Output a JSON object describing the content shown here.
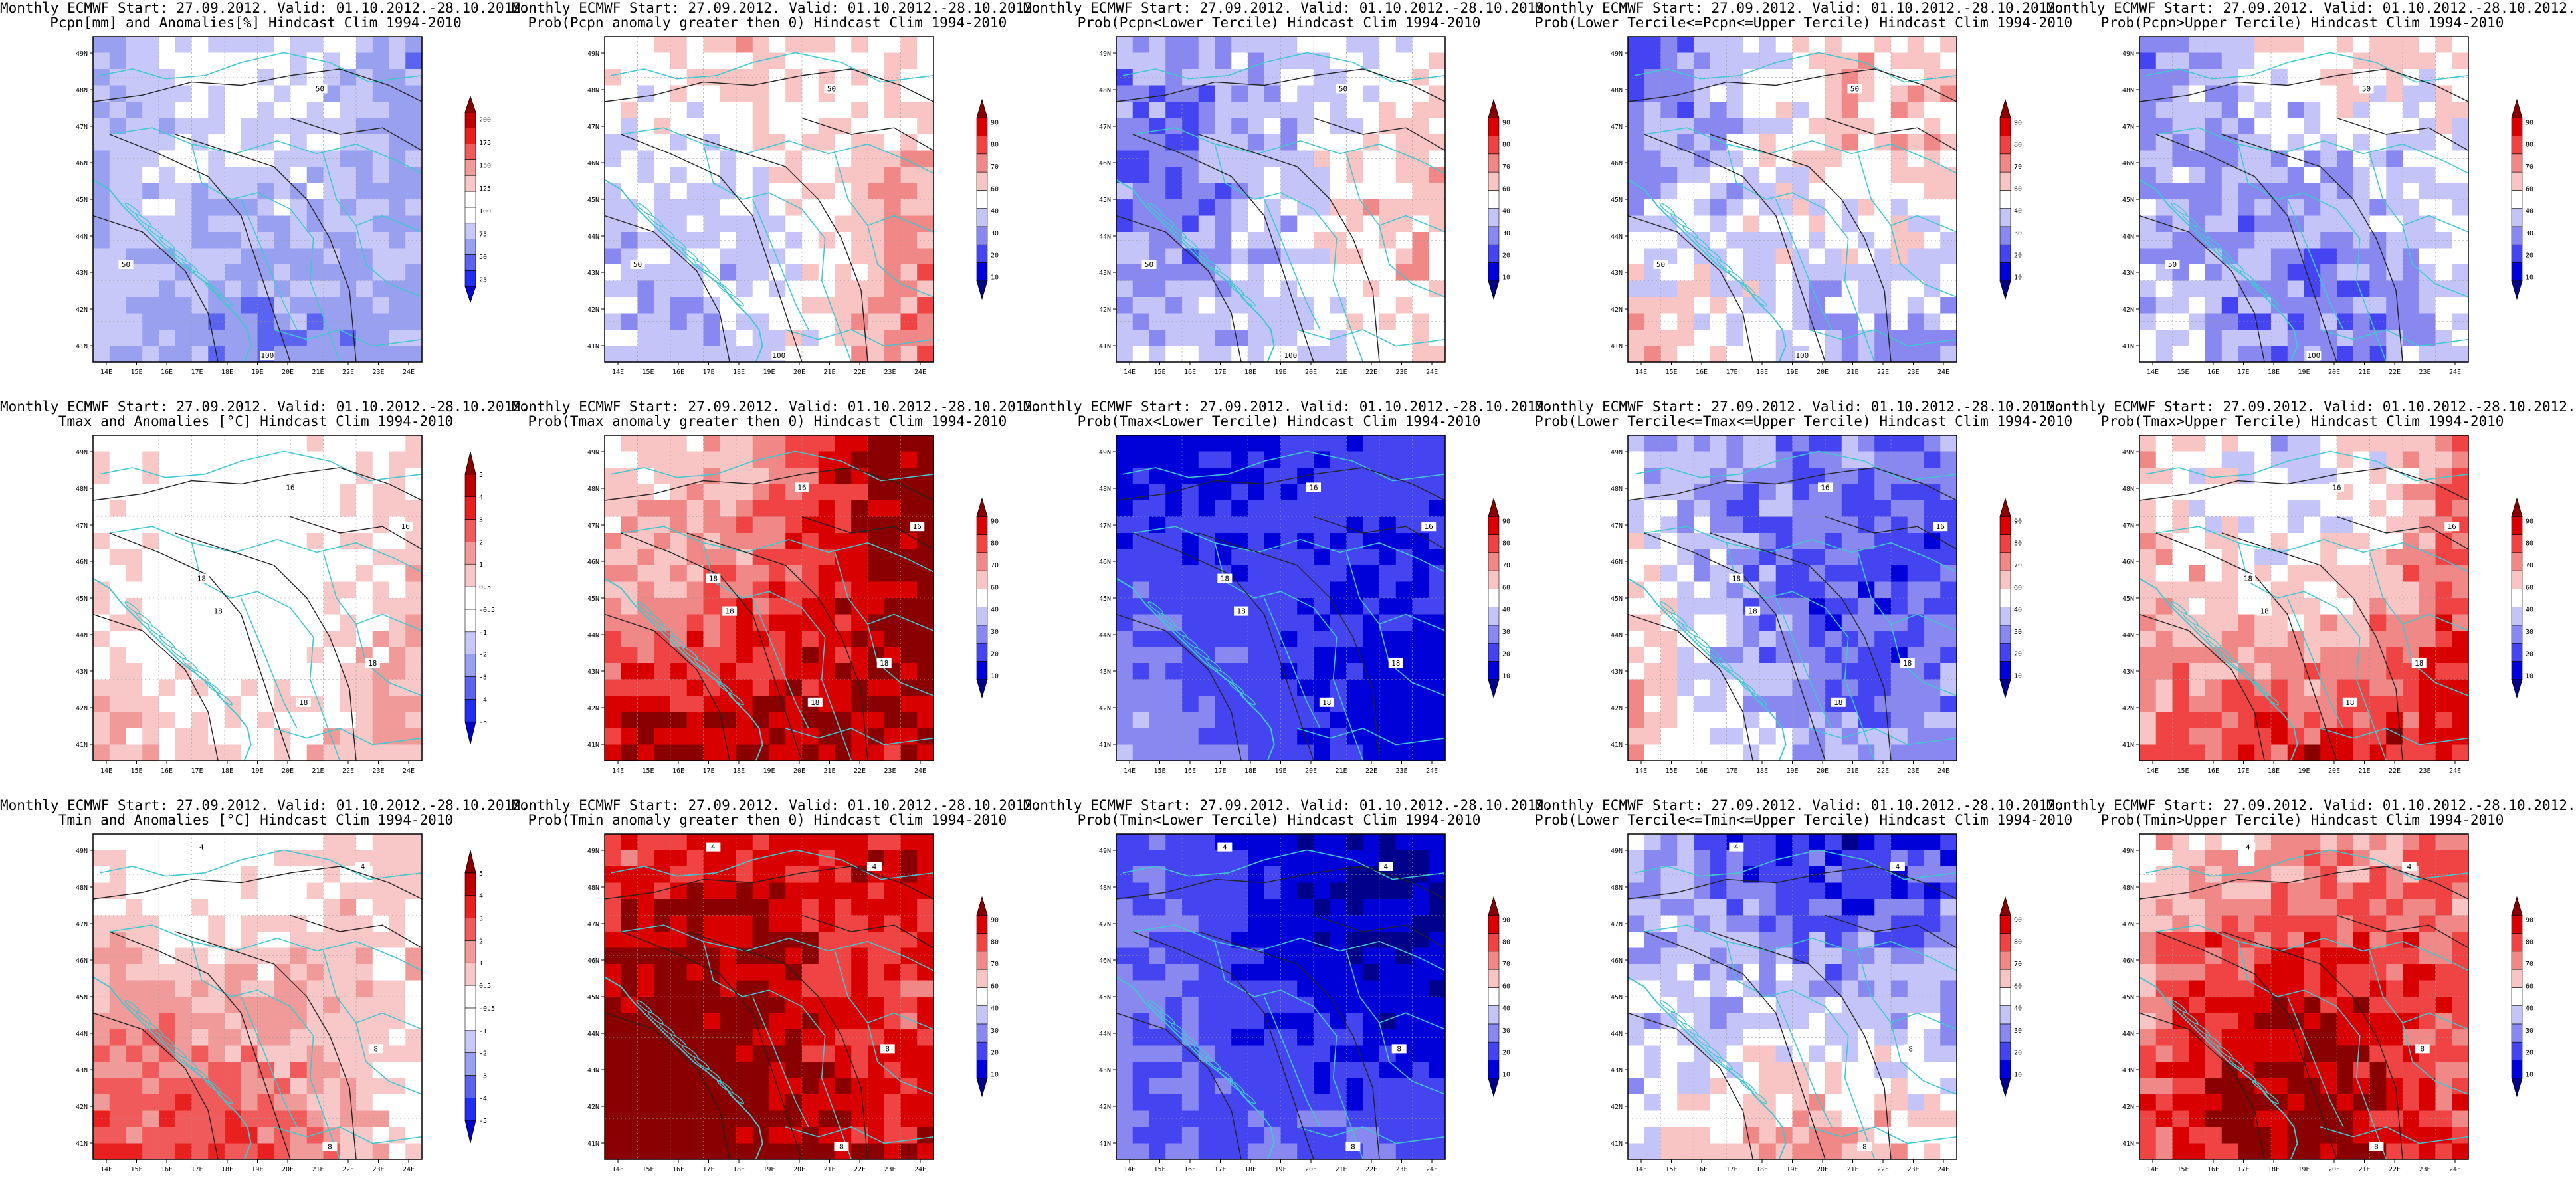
{
  "tick_labels": {
    "lon": [
      "14E",
      "15E",
      "16E",
      "17E",
      "18E",
      "19E",
      "20E",
      "21E",
      "22E",
      "23E",
      "24E"
    ],
    "lat": [
      "41N",
      "42N",
      "43N",
      "44N",
      "45N",
      "46N",
      "47N",
      "48N",
      "49N"
    ]
  },
  "colors": {
    "sea_border": "#40c8d0",
    "contour": "#222222",
    "anomaly_scale": [
      "#0000c8",
      "#2030f0",
      "#5a64f0",
      "#9aa0f0",
      "#c8c8f8",
      "#ffffff",
      "#ffffff",
      "#f8c8c8",
      "#f09a9a",
      "#f05a5a",
      "#e82020",
      "#c00000",
      "#880000"
    ],
    "prob_scale": [
      "#00008a",
      "#0000d8",
      "#4444f0",
      "#8888f0",
      "#c4c4f8",
      "#ffffff",
      "#f8c4c4",
      "#f08888",
      "#f04444",
      "#d80000",
      "#8a0000"
    ]
  },
  "colorbars": {
    "precip": [
      "25",
      "50",
      "75",
      "100",
      "125",
      "150",
      "175",
      "200"
    ],
    "temp": [
      "-5",
      "-4",
      "-3",
      "-2",
      "-1",
      "-0.5",
      "0.5",
      "1",
      "2",
      "3",
      "4",
      "5"
    ],
    "prob": [
      "10",
      "20",
      "30",
      "40",
      "60",
      "70",
      "80",
      "90"
    ]
  },
  "panels": [
    {
      "line1": "Monthly ECMWF Start: 27.09.2012. Valid: 01.10.2012.-28.10.2012.",
      "line2": "Pcpn[mm] and Anomalies[%] Hindcast Clim 1994-2010",
      "scale": "precip",
      "base": 4,
      "variance": 1,
      "labels": [
        [
          "50",
          0.69,
          0.16
        ],
        [
          "50",
          0.1,
          0.7
        ],
        [
          "100",
          0.53,
          0.98
        ]
      ]
    },
    {
      "line1": "Monthly ECMWF Start: 27.09.2012. Valid: 01.10.2012.-28.10.2012.",
      "line2": "Prob(Pcpn anomaly greater then 0) Hindcast Clim 1994-2010",
      "scale": "prob",
      "base": 4.5,
      "variance": 1,
      "labels": [
        [
          "50",
          0.69,
          0.16
        ],
        [
          "50",
          0.1,
          0.7
        ],
        [
          "100",
          0.53,
          0.98
        ]
      ]
    },
    {
      "line1": "Monthly ECMWF Start: 27.09.2012. Valid: 01.10.2012.-28.10.2012.",
      "line2": "Prob(Pcpn<Lower Tercile) Hindcast Clim 1994-2010",
      "scale": "prob",
      "base": 3.5,
      "variance": 1.2,
      "labels": [
        [
          "50",
          0.69,
          0.16
        ],
        [
          "50",
          0.1,
          0.7
        ],
        [
          "100",
          0.53,
          0.98
        ]
      ]
    },
    {
      "line1": "Monthly ECMWF Start: 27.09.2012. Valid: 01.10.2012.-28.10.2012.",
      "line2": "Prob(Lower Tercile<=Pcpn<=Upper Tercile) Hindcast Clim 1994-2010",
      "scale": "prob",
      "base": 3.4,
      "variance": 1.3,
      "labels": [
        [
          "50",
          0.69,
          0.16
        ],
        [
          "50",
          0.1,
          0.7
        ],
        [
          "100",
          0.53,
          0.98
        ]
      ]
    },
    {
      "line1": "Monthly ECMWF Start: 27.09.2012. Valid: 01.10.2012.-28.10.2012.",
      "line2": "Prob(Pcpn>Upper Tercile) Hindcast Clim 1994-2010",
      "scale": "prob",
      "base": 3.3,
      "variance": 1.3,
      "labels": [
        [
          "50",
          0.69,
          0.16
        ],
        [
          "50",
          0.1,
          0.7
        ],
        [
          "100",
          0.53,
          0.98
        ]
      ]
    },
    {
      "line1": "Monthly ECMWF Start: 27.09.2012. Valid: 01.10.2012.-28.10.2012.",
      "line2": "Tmax and Anomalies [°C] Hindcast Clim 1994-2010",
      "scale": "temp",
      "base": 7.6,
      "variance": 1,
      "labels": [
        [
          "16",
          0.6,
          0.16
        ],
        [
          "16",
          0.95,
          0.28
        ],
        [
          "18",
          0.33,
          0.44
        ],
        [
          "18",
          0.38,
          0.54
        ],
        [
          "18",
          0.85,
          0.7
        ],
        [
          "18",
          0.64,
          0.82
        ]
      ]
    },
    {
      "line1": "Monthly ECMWF Start: 27.09.2012. Valid: 01.10.2012.-28.10.2012.",
      "line2": "Prob(Tmax anomaly greater then 0) Hindcast Clim 1994-2010",
      "scale": "prob",
      "base": 7.6,
      "variance": 1.1,
      "labels": [
        [
          "16",
          0.6,
          0.16
        ],
        [
          "16",
          0.95,
          0.28
        ],
        [
          "18",
          0.33,
          0.44
        ],
        [
          "18",
          0.38,
          0.54
        ],
        [
          "18",
          0.85,
          0.7
        ],
        [
          "18",
          0.64,
          0.82
        ]
      ]
    },
    {
      "line1": "Monthly ECMWF Start: 27.09.2012. Valid: 01.10.2012.-28.10.2012.",
      "line2": "Prob(Tmax<Lower Tercile) Hindcast Clim 1994-2010",
      "scale": "prob",
      "base": 0.8,
      "variance": 0.6,
      "labels": [
        [
          "16",
          0.6,
          0.16
        ],
        [
          "16",
          0.95,
          0.28
        ],
        [
          "18",
          0.33,
          0.44
        ],
        [
          "18",
          0.38,
          0.54
        ],
        [
          "18",
          0.85,
          0.7
        ],
        [
          "18",
          0.64,
          0.82
        ]
      ]
    },
    {
      "line1": "Monthly ECMWF Start: 27.09.2012. Valid: 01.10.2012.-28.10.2012.",
      "line2": "Prob(Lower Tercile<=Tmax<=Upper Tercile) Hindcast Clim 1994-2010",
      "scale": "prob",
      "base": 3.0,
      "variance": 1.2,
      "labels": [
        [
          "16",
          0.6,
          0.16
        ],
        [
          "16",
          0.95,
          0.28
        ],
        [
          "18",
          0.33,
          0.44
        ],
        [
          "18",
          0.38,
          0.54
        ],
        [
          "18",
          0.85,
          0.7
        ],
        [
          "18",
          0.64,
          0.82
        ]
      ]
    },
    {
      "line1": "Monthly ECMWF Start: 27.09.2012. Valid: 01.10.2012.-28.10.2012.",
      "line2": "Prob(Tmax>Upper Tercile) Hindcast Clim 1994-2010",
      "scale": "prob",
      "base": 6.2,
      "variance": 1.3,
      "labels": [
        [
          "16",
          0.6,
          0.16
        ],
        [
          "16",
          0.95,
          0.28
        ],
        [
          "18",
          0.33,
          0.44
        ],
        [
          "18",
          0.38,
          0.54
        ],
        [
          "18",
          0.85,
          0.7
        ],
        [
          "18",
          0.64,
          0.82
        ]
      ]
    },
    {
      "line1": "Monthly ECMWF Start: 27.09.2012. Valid: 01.10.2012.-28.10.2012.",
      "line2": "Tmin and Anomalies [°C] Hindcast Clim 1994-2010",
      "scale": "temp",
      "base": 7.8,
      "variance": 1,
      "labels": [
        [
          "4",
          0.33,
          0.04
        ],
        [
          "4",
          0.82,
          0.1
        ],
        [
          "8",
          0.86,
          0.66
        ],
        [
          "8",
          0.72,
          0.96
        ]
      ]
    },
    {
      "line1": "Monthly ECMWF Start: 27.09.2012. Valid: 01.10.2012.-28.10.2012.",
      "line2": "Prob(Tmin anomaly greater then 0) Hindcast Clim 1994-2010",
      "scale": "prob",
      "base": 8.2,
      "variance": 1.1,
      "labels": [
        [
          "4",
          0.33,
          0.04
        ],
        [
          "4",
          0.82,
          0.1
        ],
        [
          "8",
          0.86,
          0.66
        ],
        [
          "8",
          0.72,
          0.96
        ]
      ]
    },
    {
      "line1": "Monthly ECMWF Start: 27.09.2012. Valid: 01.10.2012.-28.10.2012.",
      "line2": "Prob(Tmin<Lower Tercile) Hindcast Clim 1994-2010",
      "scale": "prob",
      "base": 0.9,
      "variance": 0.7,
      "labels": [
        [
          "4",
          0.33,
          0.04
        ],
        [
          "4",
          0.82,
          0.1
        ],
        [
          "8",
          0.86,
          0.66
        ],
        [
          "8",
          0.72,
          0.96
        ]
      ]
    },
    {
      "line1": "Monthly ECMWF Start: 27.09.2012. Valid: 01.10.2012.-28.10.2012.",
      "line2": "Prob(Lower Tercile<=Tmin<=Upper Tercile) Hindcast Clim 1994-2010",
      "scale": "prob",
      "base": 3.0,
      "variance": 1.3,
      "labels": [
        [
          "4",
          0.33,
          0.04
        ],
        [
          "4",
          0.82,
          0.1
        ],
        [
          "8",
          0.86,
          0.66
        ],
        [
          "8",
          0.72,
          0.96
        ]
      ]
    },
    {
      "line1": "Monthly ECMWF Start: 27.09.2012. Valid: 01.10.2012.-28.10.2012.",
      "line2": "Prob(Tmin>Upper Tercile) Hindcast Clim 1994-2010",
      "scale": "prob",
      "base": 6.3,
      "variance": 1.3,
      "labels": [
        [
          "4",
          0.33,
          0.04
        ],
        [
          "4",
          0.82,
          0.1
        ],
        [
          "8",
          0.86,
          0.66
        ],
        [
          "8",
          0.72,
          0.96
        ]
      ]
    }
  ]
}
